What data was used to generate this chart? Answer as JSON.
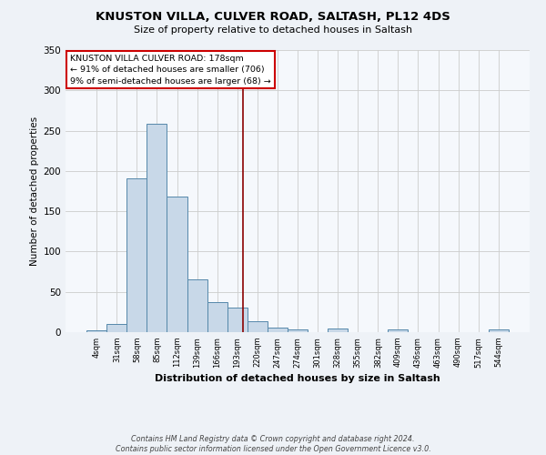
{
  "title1": "KNUSTON VILLA, CULVER ROAD, SALTASH, PL12 4DS",
  "title2": "Size of property relative to detached houses in Saltash",
  "xlabel": "Distribution of detached houses by size in Saltash",
  "ylabel": "Number of detached properties",
  "bar_labels": [
    "4sqm",
    "31sqm",
    "58sqm",
    "85sqm",
    "112sqm",
    "139sqm",
    "166sqm",
    "193sqm",
    "220sqm",
    "247sqm",
    "274sqm",
    "301sqm",
    "328sqm",
    "355sqm",
    "382sqm",
    "409sqm",
    "436sqm",
    "463sqm",
    "490sqm",
    "517sqm",
    "544sqm"
  ],
  "bar_values": [
    2,
    10,
    191,
    259,
    168,
    66,
    37,
    30,
    13,
    6,
    3,
    0,
    4,
    0,
    0,
    3,
    0,
    0,
    0,
    0,
    3
  ],
  "bar_width": 1.0,
  "bar_color": "#c8d8e8",
  "bar_edge_color": "#5588aa",
  "vline_x": 7.27,
  "vline_color": "#8b0000",
  "annotation_text": "KNUSTON VILLA CULVER ROAD: 178sqm\n← 91% of detached houses are smaller (706)\n9% of semi-detached houses are larger (68) →",
  "annotation_box_color": "white",
  "annotation_box_edge_color": "#cc0000",
  "ylim": [
    0,
    350
  ],
  "yticks": [
    0,
    50,
    100,
    150,
    200,
    250,
    300,
    350
  ],
  "footnote": "Contains HM Land Registry data © Crown copyright and database right 2024.\nContains public sector information licensed under the Open Government Licence v3.0.",
  "bg_color": "#eef2f7",
  "plot_bg_color": "#f5f8fc",
  "grid_color": "#cccccc"
}
